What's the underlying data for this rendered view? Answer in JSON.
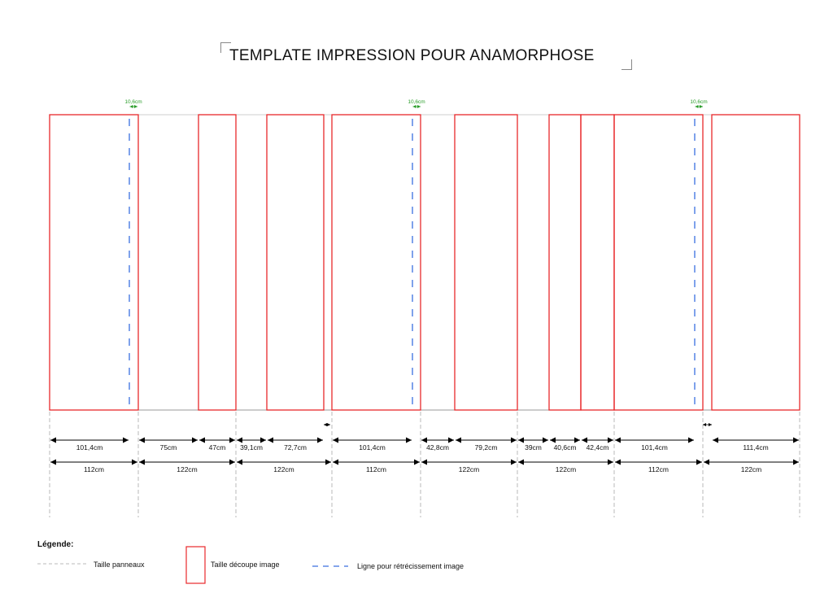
{
  "title": "TEMPLATE IMPRESSION POUR ANAMORPHOSE",
  "shrink_labels": [
    "10,6cm",
    "10,6cm",
    "10,6cm"
  ],
  "upper_dims": [
    "101,4cm",
    "75cm",
    "47cm",
    "39,1cm",
    "72,7cm",
    "101,4cm",
    "42,8cm",
    "79,2cm",
    "39cm",
    "40,6cm",
    "42,4cm",
    "101,4cm",
    "111,4cm"
  ],
  "lower_dims": [
    "112cm",
    "122cm",
    "122cm",
    "112cm",
    "122cm",
    "122cm",
    "112cm",
    "122cm"
  ],
  "legend": {
    "title": "Légende:",
    "panel_size": "Taille panneaux",
    "image_cut": "Taille découpe image",
    "shrink_line": "Ligne pour rétrécissement image"
  },
  "colors": {
    "cut_rect": "#e8282b",
    "shrink_line": "#3a6fe0",
    "shrink_label": "#2a9d2a",
    "panel_line": "#b8b8b8",
    "dimension": "#000000"
  }
}
